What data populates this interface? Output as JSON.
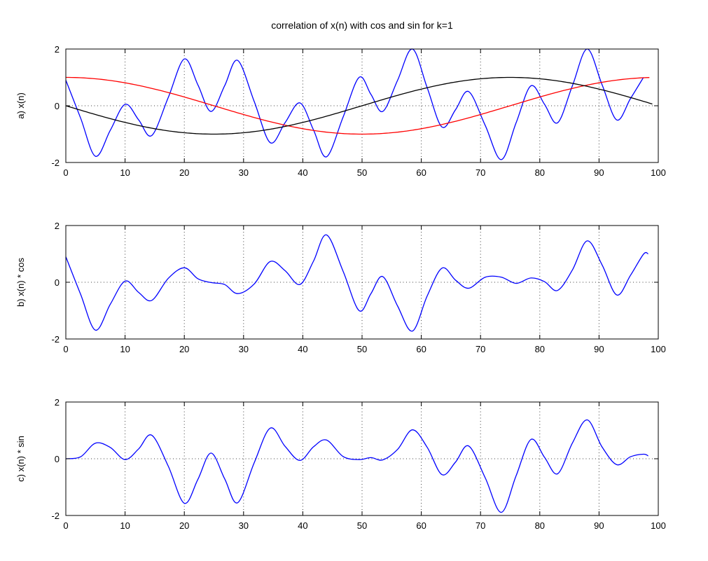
{
  "figure": {
    "title": "correlation of x(n) with cos and sin for k=1",
    "background": "#ffffff"
  },
  "colors": {
    "signal": "#0000ff",
    "cos_basis": "#ff0000",
    "sin_basis": "#000000",
    "axis": "#000000"
  },
  "chart_data": [
    {
      "id": "a",
      "type": "line",
      "title": "correlation of x(n) with cos and sin for k=1",
      "ylabel": "a) x(n)",
      "xlabel": "",
      "xlim": [
        0,
        100
      ],
      "ylim": [
        -2,
        2
      ],
      "xticks": [
        0,
        10,
        20,
        30,
        40,
        50,
        60,
        70,
        80,
        90,
        100
      ],
      "yticks": [
        -2,
        0,
        2
      ],
      "grid": true,
      "legend": false,
      "series": [
        {
          "key": "x-signal",
          "name": "x(n)",
          "color": "#0000ff",
          "points": [
            [
              0,
              0.9
            ],
            [
              2.5,
              -0.44
            ],
            [
              5,
              -1.78
            ],
            [
              7.5,
              -0.87
            ],
            [
              10,
              0.05
            ],
            [
              12.3,
              -0.5
            ],
            [
              14.5,
              -1.05
            ],
            [
              17.3,
              0.3
            ],
            [
              20,
              1.65
            ],
            [
              22.3,
              0.73
            ],
            [
              24.5,
              -0.2
            ],
            [
              26.8,
              0.7
            ],
            [
              29,
              1.6
            ],
            [
              31.8,
              0.15
            ],
            [
              34.5,
              -1.3
            ],
            [
              37,
              -0.6
            ],
            [
              39.5,
              0.1
            ],
            [
              41.8,
              -0.85
            ],
            [
              44,
              -1.8
            ],
            [
              46.8,
              -0.4
            ],
            [
              49.5,
              1.0
            ],
            [
              51.5,
              0.4
            ],
            [
              53.5,
              -0.2
            ],
            [
              56,
              0.9
            ],
            [
              58.5,
              2.0
            ],
            [
              61,
              0.63
            ],
            [
              63.5,
              -0.75
            ],
            [
              65.8,
              -0.13
            ],
            [
              68,
              0.5
            ],
            [
              70.8,
              -0.7
            ],
            [
              73.5,
              -1.9
            ],
            [
              76,
              -0.6
            ],
            [
              78.5,
              0.7
            ],
            [
              80.8,
              0.05
            ],
            [
              83,
              -0.6
            ],
            [
              85.5,
              0.7
            ],
            [
              88,
              2.0
            ],
            [
              90.5,
              0.75
            ],
            [
              93,
              -0.5
            ],
            [
              95.3,
              0.25
            ],
            [
              97.5,
              1.0
            ]
          ]
        },
        {
          "key": "cos-basis",
          "name": "cos(2*pi*n/100)",
          "color": "#ff0000",
          "sinusoid": {
            "form": "cos",
            "cycles": 1,
            "amplitude": 1,
            "n_start": 0,
            "n_end": 98.5
          }
        },
        {
          "key": "neg-sin-basis",
          "name": "-sin(2*pi*n/100)",
          "color": "#000000",
          "sinusoid": {
            "form": "-sin",
            "cycles": 1,
            "amplitude": 1,
            "n_start": 0,
            "n_end": 99
          }
        }
      ]
    },
    {
      "id": "b",
      "type": "line",
      "title": "",
      "ylabel": "b) x(n) * cos",
      "xlabel": "",
      "xlim": [
        0,
        100
      ],
      "ylim": [
        -2,
        2
      ],
      "xticks": [
        0,
        10,
        20,
        30,
        40,
        50,
        60,
        70,
        80,
        90,
        100
      ],
      "yticks": [
        -2,
        0,
        2
      ],
      "grid": true,
      "legend": false,
      "series": [
        {
          "key": "x-times-cos",
          "name": "x(n) * cos",
          "color": "#0000ff",
          "points": [
            [
              0,
              0.9
            ],
            [
              2.5,
              -0.43
            ],
            [
              5,
              -1.69
            ],
            [
              7.5,
              -0.78
            ],
            [
              10,
              0.04
            ],
            [
              12.3,
              -0.36
            ],
            [
              14.5,
              -0.64
            ],
            [
              17.3,
              0.14
            ],
            [
              20,
              0.51
            ],
            [
              22.3,
              0.12
            ],
            [
              24.5,
              -0.01
            ],
            [
              26.8,
              -0.08
            ],
            [
              29,
              -0.4
            ],
            [
              31.8,
              -0.06
            ],
            [
              34.5,
              0.73
            ],
            [
              37,
              0.41
            ],
            [
              39.5,
              -0.08
            ],
            [
              41.8,
              0.74
            ],
            [
              44,
              1.67
            ],
            [
              46.8,
              0.39
            ],
            [
              49.5,
              -1.0
            ],
            [
              51.5,
              -0.4
            ],
            [
              53.5,
              0.2
            ],
            [
              56,
              -0.84
            ],
            [
              58.5,
              -1.72
            ],
            [
              61,
              -0.48
            ],
            [
              63.5,
              0.5
            ],
            [
              65.8,
              0.07
            ],
            [
              68,
              -0.21
            ],
            [
              70.8,
              0.18
            ],
            [
              73.5,
              0.18
            ],
            [
              76,
              -0.04
            ],
            [
              78.5,
              0.15
            ],
            [
              80.8,
              0.02
            ],
            [
              83,
              -0.29
            ],
            [
              85.5,
              0.43
            ],
            [
              88,
              1.46
            ],
            [
              90.5,
              0.62
            ],
            [
              93,
              -0.45
            ],
            [
              95.3,
              0.24
            ],
            [
              97.5,
              0.99
            ],
            [
              98.3,
              1.0
            ]
          ]
        }
      ]
    },
    {
      "id": "c",
      "type": "line",
      "title": "",
      "ylabel": "c) x(n) * sin",
      "xlabel": "",
      "xlim": [
        0,
        100
      ],
      "ylim": [
        -2,
        2
      ],
      "xticks": [
        0,
        10,
        20,
        30,
        40,
        50,
        60,
        70,
        80,
        90,
        100
      ],
      "yticks": [
        -2,
        0,
        2
      ],
      "grid": true,
      "legend": false,
      "series": [
        {
          "key": "x-times-sin",
          "name": "x(n) * sin",
          "color": "#0000ff",
          "points": [
            [
              0,
              0.0
            ],
            [
              2.5,
              0.07
            ],
            [
              5,
              0.55
            ],
            [
              7.5,
              0.4
            ],
            [
              10,
              -0.03
            ],
            [
              12.3,
              0.35
            ],
            [
              14.5,
              0.83
            ],
            [
              17.3,
              -0.27
            ],
            [
              20,
              -1.57
            ],
            [
              22.3,
              -0.72
            ],
            [
              24.5,
              0.2
            ],
            [
              26.8,
              -0.7
            ],
            [
              29,
              -1.55
            ],
            [
              31.8,
              -0.14
            ],
            [
              34.5,
              1.08
            ],
            [
              37,
              0.44
            ],
            [
              39.5,
              -0.06
            ],
            [
              41.8,
              0.42
            ],
            [
              44,
              0.66
            ],
            [
              46.8,
              0.08
            ],
            [
              49.5,
              -0.03
            ],
            [
              51.5,
              0.04
            ],
            [
              53.5,
              -0.04
            ],
            [
              56,
              0.33
            ],
            [
              58.5,
              1.02
            ],
            [
              61,
              0.4
            ],
            [
              63.5,
              -0.56
            ],
            [
              65.8,
              -0.11
            ],
            [
              68,
              0.45
            ],
            [
              70.8,
              -0.68
            ],
            [
              73.5,
              -1.89
            ],
            [
              76,
              -0.6
            ],
            [
              78.5,
              0.68
            ],
            [
              80.8,
              0.05
            ],
            [
              83,
              -0.53
            ],
            [
              85.5,
              0.55
            ],
            [
              88,
              1.37
            ],
            [
              90.5,
              0.42
            ],
            [
              93,
              -0.21
            ],
            [
              95.3,
              0.07
            ],
            [
              97.5,
              0.16
            ],
            [
              98.3,
              0.1
            ]
          ]
        }
      ]
    }
  ]
}
